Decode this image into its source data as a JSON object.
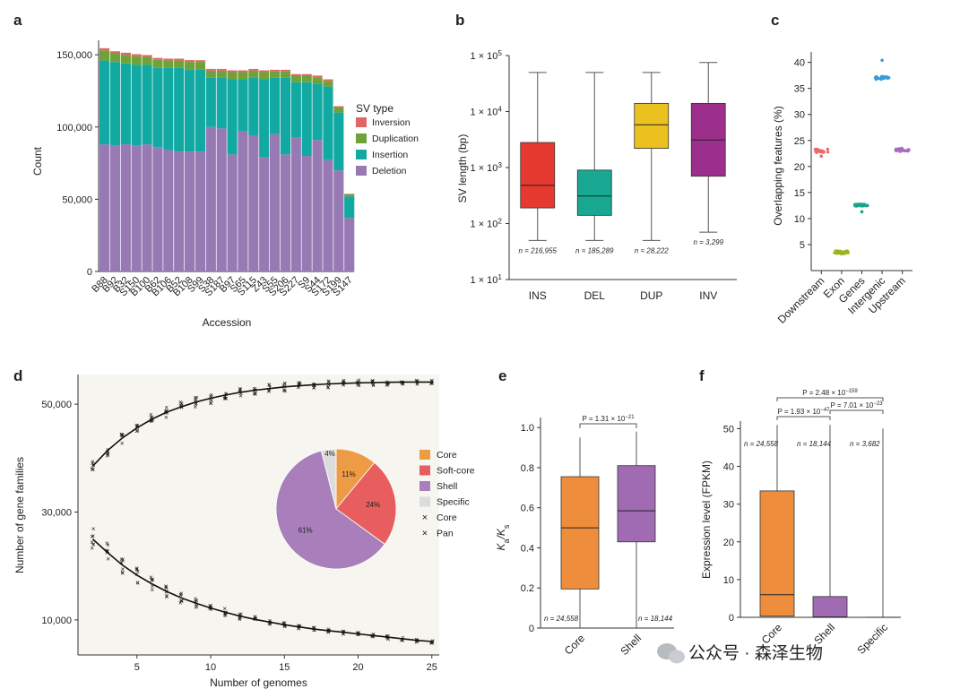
{
  "panels": {
    "a": {
      "label": "a",
      "chart_data": {
        "type": "bar",
        "stacked": true,
        "xlabel": "Accession",
        "ylabel": "Count",
        "ylim": [
          0,
          160000
        ],
        "yticks": [
          "0",
          "50,000",
          "100,000",
          "150,000"
        ],
        "ytick_values": [
          0,
          50000,
          100000,
          150000
        ],
        "legend_title": "SV type",
        "legend_position": "right",
        "categories": [
          "B88",
          "B92",
          "B32",
          "S150",
          "B100",
          "B62",
          "B106",
          "B52",
          "B108",
          "S99",
          "S38",
          "S187",
          "B97",
          "S65",
          "S115",
          "Z43",
          "S55",
          "S206",
          "S227",
          "S9",
          "S44",
          "S172",
          "S199",
          "S147"
        ],
        "tick_labels_shown": [
          "B88",
          "B92",
          "B32",
          "S150",
          "B100",
          "B62",
          "B106",
          "B52",
          "B108",
          "S99",
          "S38",
          "S187",
          "B97",
          "S65",
          "S115",
          "Z43",
          "S55",
          "S206",
          "S227",
          "S9",
          "S44",
          "S172",
          "S199",
          "S147"
        ],
        "series": [
          {
            "name": "Deletion",
            "color": "#9779b4",
            "values": [
              88000,
              87000,
              88000,
              87000,
              88000,
              86000,
              84000,
              83000,
              83000,
              83000,
              100000,
              99000,
              81000,
              97000,
              94000,
              79000,
              95000,
              81000,
              93000,
              80000,
              91000,
              77000,
              70000,
              37000
            ]
          },
          {
            "name": "Insertion",
            "color": "#13a9a3",
            "values": [
              58000,
              58000,
              56000,
              56000,
              55000,
              55000,
              57000,
              58000,
              57000,
              57000,
              34000,
              35000,
              52000,
              36000,
              40000,
              54000,
              39000,
              53000,
              38000,
              51000,
              39000,
              51000,
              40000,
              15000
            ]
          },
          {
            "name": "Duplication",
            "color": "#6fa33a",
            "values": [
              7000,
              6000,
              6000,
              6000,
              5500,
              5500,
              5000,
              5000,
              5000,
              5000,
              5000,
              5000,
              5000,
              5000,
              5000,
              5000,
              4500,
              4500,
              4500,
              4500,
              4500,
              4000,
              3500,
              1500
            ]
          },
          {
            "name": "Inversion",
            "color": "#e06664",
            "values": [
              1500,
              1400,
              1400,
              1400,
              1300,
              1300,
              1300,
              1300,
              1300,
              1200,
              1200,
              1200,
              1200,
              1200,
              1200,
              1200,
              1100,
              1100,
              1100,
              1100,
              1100,
              1000,
              900,
              300
            ]
          }
        ]
      }
    },
    "b": {
      "label": "b",
      "chart_data": {
        "type": "box",
        "ylabel": "SV length (bp)",
        "yscale": "log",
        "ylim": [
          10,
          100000
        ],
        "ytick_exponents": [
          "1",
          "2",
          "3",
          "4",
          "5"
        ],
        "ytick_base": "1 × 10",
        "categories": [
          "INS",
          "DEL",
          "DUP",
          "INV"
        ],
        "series": [
          {
            "name": "INS",
            "color": "#e6392f",
            "whisker_low": 50,
            "q1": 190,
            "median": 480,
            "q3": 2800,
            "whisker_high": 50000,
            "n": "n = 216,955"
          },
          {
            "name": "DEL",
            "color": "#18a892",
            "whisker_low": 50,
            "q1": 140,
            "median": 310,
            "q3": 900,
            "whisker_high": 50000,
            "n": "n = 185,289"
          },
          {
            "name": "DUP",
            "color": "#ebc11f",
            "whisker_low": 50,
            "q1": 2200,
            "median": 5800,
            "q3": 14000,
            "whisker_high": 50000,
            "n": "n = 28,222"
          },
          {
            "name": "INV",
            "color": "#9d2f8c",
            "whisker_low": 70,
            "q1": 700,
            "median": 3100,
            "q3": 14000,
            "whisker_high": 75000,
            "n": "n = 3,299"
          }
        ]
      }
    },
    "c": {
      "label": "c",
      "chart_data": {
        "type": "scatter",
        "ylabel": "Overlapping features (%)",
        "ylim": [
          0,
          42
        ],
        "yticks": [
          5,
          10,
          15,
          20,
          25,
          30,
          35,
          40
        ],
        "categories": [
          "Downstream",
          "Exon",
          "Genes",
          "Intergenic",
          "Upstream"
        ],
        "series": [
          {
            "name": "Downstream",
            "color": "#e86b6b",
            "center": 23.0,
            "spread": 0.35,
            "outliers": [
              22.0
            ]
          },
          {
            "name": "Exon",
            "color": "#9bb41e",
            "center": 3.5,
            "spread": 0.3,
            "outliers": []
          },
          {
            "name": "Genes",
            "color": "#1aa58a",
            "center": 12.6,
            "spread": 0.2,
            "outliers": [
              11.3
            ]
          },
          {
            "name": "Intergenic",
            "color": "#3b9ad8",
            "center": 37.0,
            "spread": 0.3,
            "outliers": [
              40.4
            ]
          },
          {
            "name": "Upstream",
            "color": "#a86bc0",
            "center": 23.2,
            "spread": 0.3,
            "outliers": []
          }
        ]
      }
    },
    "d": {
      "label": "d",
      "chart_data": {
        "type": "scatter",
        "xlabel": "Number of genomes",
        "ylabel": "Number of gene families",
        "xlim": [
          1,
          25.5
        ],
        "ylim": [
          3500,
          55500
        ],
        "xticks": [
          5,
          10,
          15,
          20,
          25
        ],
        "yticks": [
          "10,000",
          "30,000",
          "50,000"
        ],
        "ytick_values": [
          10000,
          30000,
          50000
        ],
        "series": [
          {
            "name": "Pan",
            "color": "#2f6f9f",
            "x": [
              2,
              3,
              4,
              5,
              6,
              7,
              8,
              9,
              10,
              11,
              12,
              13,
              14,
              15,
              16,
              17,
              18,
              19,
              20,
              21,
              22,
              23,
              24,
              25
            ],
            "y": [
              38500,
              41400,
              43700,
              45600,
              47200,
              48500,
              49500,
              50400,
              51100,
              51700,
              52200,
              52600,
              52900,
              53200,
              53400,
              53600,
              53750,
              53850,
              53950,
              54000,
              54050,
              54100,
              54100,
              54100
            ]
          },
          {
            "name": "Core",
            "color": "#d9772c",
            "x": [
              2,
              3,
              4,
              5,
              6,
              7,
              8,
              9,
              10,
              11,
              12,
              13,
              14,
              15,
              16,
              17,
              18,
              19,
              20,
              21,
              22,
              23,
              24,
              25
            ],
            "y": [
              25000,
              22500,
              20200,
              18300,
              16700,
              15300,
              14100,
              13100,
              12200,
              11400,
              10700,
              10100,
              9600,
              9100,
              8700,
              8300,
              8000,
              7700,
              7400,
              7100,
              6800,
              6500,
              6200,
              6000
            ]
          }
        ],
        "fit_color": "#111111",
        "inset_pie": {
          "type": "pie",
          "slices": [
            {
              "name": "Core",
              "value": 11,
              "label": "11%",
              "color": "#ee9b45"
            },
            {
              "name": "Soft-core",
              "value": 24,
              "label": "24%",
              "color": "#e85d5d"
            },
            {
              "name": "Shell",
              "value": 61,
              "label": "61%",
              "color": "#a87fba"
            },
            {
              "name": "Specific",
              "value": 4,
              "label": "4%",
              "color": "#dcdcdc"
            }
          ]
        },
        "legend": [
          {
            "label": "Core",
            "kind": "square",
            "color": "#ee9b45"
          },
          {
            "label": "Soft-core",
            "kind": "square",
            "color": "#e85d5d"
          },
          {
            "label": "Shell",
            "kind": "square",
            "color": "#a87fba"
          },
          {
            "label": "Specific",
            "kind": "square",
            "color": "#dcdcdc"
          },
          {
            "label": "Core",
            "kind": "cross",
            "color": "#d9772c"
          },
          {
            "label": "Pan",
            "kind": "cross",
            "color": "#2f6f9f"
          }
        ]
      }
    },
    "e": {
      "label": "e",
      "chart_data": {
        "type": "box",
        "ylabel_main": "K",
        "ylabel_sub1": "a",
        "ylabel_slash": "/K",
        "ylabel_sub2": "s",
        "ylim": [
          0,
          1.05
        ],
        "yticks": [
          "0",
          "0.2",
          "0.4",
          "0.6",
          "0.8",
          "1.0"
        ],
        "ytick_values": [
          0,
          0.2,
          0.4,
          0.6,
          0.8,
          1.0
        ],
        "categories": [
          "Core",
          "Shell"
        ],
        "pvalue": "P = 1.31 × 10",
        "pvalue_exp": "−21",
        "series": [
          {
            "name": "Core",
            "color": "#ee8e3d",
            "whisker_low": 0,
            "q1": 0.195,
            "median": 0.5,
            "q3": 0.755,
            "whisker_high": 0.95,
            "n": "n = 24,558"
          },
          {
            "name": "Shell",
            "color": "#a06bb3",
            "whisker_low": 0,
            "q1": 0.43,
            "median": 0.585,
            "q3": 0.81,
            "whisker_high": 0.98,
            "n": "n = 18,144"
          }
        ]
      }
    },
    "f": {
      "label": "f",
      "chart_data": {
        "type": "box",
        "ylabel": "Expression level (FPKM)",
        "ylim": [
          0,
          52
        ],
        "yticks": [
          0,
          10,
          20,
          30,
          40,
          50
        ],
        "categories": [
          "Core",
          "Shell",
          "Specific"
        ],
        "comparisons": [
          {
            "text": "P = 2.48 × 10",
            "exp": "−159"
          },
          {
            "text": "P = 1.93 × 10",
            "exp": "−47"
          },
          {
            "text": "P = 7.01 × 10",
            "exp": "−23"
          }
        ],
        "series": [
          {
            "name": "Core",
            "color": "#ee8e3d",
            "whisker_low": 0,
            "q1": 0.3,
            "median": 6,
            "q3": 33.5,
            "whisker_high": 51,
            "n": "n = 24,558"
          },
          {
            "name": "Shell",
            "color": "#a06bb3",
            "whisker_low": 0,
            "q1": 0,
            "median": 0.1,
            "q3": 5.5,
            "whisker_high": 51,
            "n": "n = 18,144"
          },
          {
            "name": "Specific",
            "color": "#888888",
            "whisker_low": 0,
            "q1": 0,
            "median": 0,
            "q3": 0.1,
            "whisker_high": 50,
            "n": "n = 3,682"
          }
        ]
      }
    }
  },
  "watermark": "公众号 · 森泽生物"
}
